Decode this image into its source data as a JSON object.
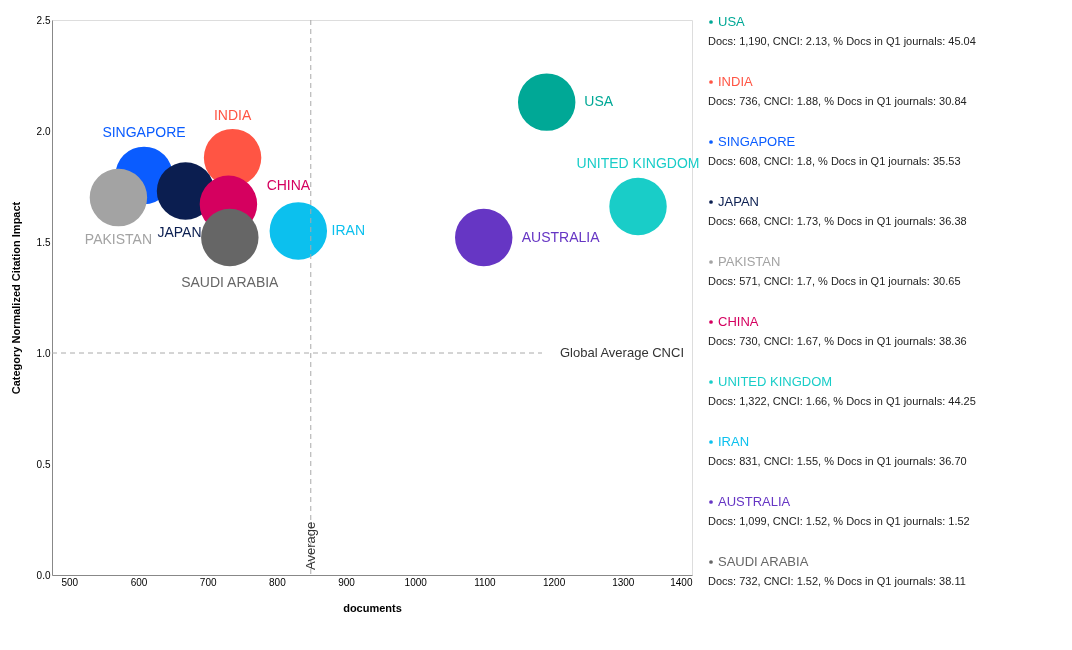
{
  "chart_data": {
    "type": "scatter",
    "xlabel": "documents",
    "ylabel": "Category Normalized Citation Impact",
    "series": [
      {
        "name": "USA",
        "color": "#00a896",
        "x": [
          1190
        ],
        "values": [
          2.13
        ]
      },
      {
        "name": "INDIA",
        "color": "#ff5544",
        "x": [
          736
        ],
        "values": [
          1.88
        ]
      },
      {
        "name": "SINGAPORE",
        "color": "#0a5cff",
        "x": [
          608
        ],
        "values": [
          1.8
        ]
      },
      {
        "name": "JAPAN",
        "color": "#0b1e50",
        "x": [
          668
        ],
        "values": [
          1.73
        ]
      },
      {
        "name": "PAKISTAN",
        "color": "#a3a3a3",
        "x": [
          571
        ],
        "values": [
          1.7
        ]
      },
      {
        "name": "CHINA",
        "color": "#d5005f",
        "x": [
          730
        ],
        "values": [
          1.67
        ]
      },
      {
        "name": "UNITED KINGDOM",
        "color": "#19cdc8",
        "x": [
          1322
        ],
        "values": [
          1.66
        ]
      },
      {
        "name": "IRAN",
        "color": "#0cc0ee",
        "x": [
          831
        ],
        "values": [
          1.55
        ]
      },
      {
        "name": "AUSTRALIA",
        "color": "#6636c4",
        "x": [
          1099
        ],
        "values": [
          1.52
        ]
      },
      {
        "name": "SAUDI ARABIA",
        "color": "#666666",
        "x": [
          732
        ],
        "values": [
          1.52
        ]
      }
    ],
    "xlim": [
      475,
      1400
    ],
    "xticks": [
      500,
      600,
      700,
      800,
      900,
      1000,
      1100,
      1200,
      1300,
      1400
    ],
    "ylim": [
      0,
      2.5
    ],
    "yticks": [
      {
        "value": 0,
        "label": "0.0"
      },
      0.5,
      {
        "value": 1,
        "label": "1.0"
      },
      1.5,
      {
        "value": 2,
        "label": "2.0"
      },
      2.5
    ],
    "marker": "circle",
    "grid": false,
    "legend": "right",
    "ref_lines": [
      {
        "axis": "y",
        "value": 1.0,
        "label": "Global Average CNCI",
        "line_style": "dashed"
      },
      {
        "axis": "x",
        "value": 849,
        "label": "Average",
        "line_style": "dashed"
      }
    ],
    "annotations": [
      "Docs: 1,190, CNCI: 2.13, % Docs in Q1 journals: 45.04",
      "Docs: 736, CNCI: 1.88, % Docs in Q1 journals: 30.84",
      "Docs: 608, CNCI: 1.8, % Docs in Q1 journals: 35.53",
      "Docs: 668, CNCI: 1.73, % Docs in Q1 journals: 36.38",
      "Docs: 571, CNCI: 1.7, % Docs in Q1 journals: 30.65",
      "Docs: 730, CNCI: 1.67, % Docs in Q1 journals: 38.36",
      "Docs: 1,322, CNCI: 1.66, % Docs in Q1 journals: 44.25",
      "Docs: 831, CNCI: 1.55, % Docs in Q1 journals: 36.70",
      "Docs: 1,099, CNCI: 1.52, % Docs in Q1 journals: 1.52",
      "Docs: 732, CNCI: 1.52, % Docs in Q1 journals: 38.11"
    ]
  }
}
